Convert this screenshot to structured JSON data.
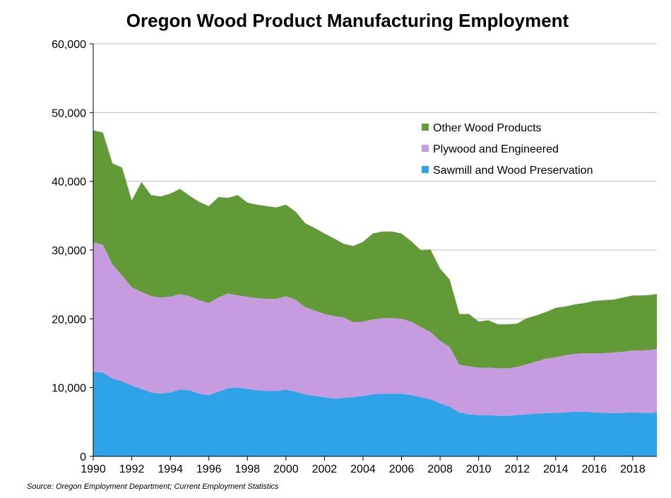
{
  "chart_data": {
    "type": "area",
    "stacked": true,
    "title": "Oregon Wood Product Manufacturing Employment",
    "xlabel": "",
    "ylabel": "",
    "xlim": [
      1990,
      2019.25
    ],
    "ylim": [
      0,
      60000
    ],
    "x_ticks": [
      "1990",
      "1992",
      "1994",
      "1996",
      "1998",
      "2000",
      "2002",
      "2004",
      "2006",
      "2008",
      "2010",
      "2012",
      "2014",
      "2016",
      "2018"
    ],
    "y_ticks": [
      "0",
      "10,000",
      "20,000",
      "30,000",
      "40,000",
      "50,000",
      "60,000"
    ],
    "grid": "horizontal",
    "legend_position": "top-right",
    "x": [
      1990,
      1990.5,
      1991,
      1991.5,
      1992,
      1992.5,
      1993,
      1993.5,
      1994,
      1994.5,
      1995,
      1995.5,
      1996,
      1996.5,
      1997,
      1997.5,
      1998,
      1998.5,
      1999,
      1999.5,
      2000,
      2000.5,
      2001,
      2001.5,
      2002,
      2002.5,
      2003,
      2003.5,
      2004,
      2004.5,
      2005,
      2005.5,
      2006,
      2006.5,
      2007,
      2007.5,
      2008,
      2008.5,
      2009,
      2009.5,
      2010,
      2010.5,
      2011,
      2011.5,
      2012,
      2012.5,
      2013,
      2013.5,
      2014,
      2014.5,
      2015,
      2015.5,
      2016,
      2016.5,
      2017,
      2017.5,
      2018,
      2018.5,
      2019,
      2019.25
    ],
    "series": [
      {
        "name": "Sawmill and Wood Preservation",
        "color": "#2ea3e8",
        "values": [
          12300,
          12200,
          11300,
          10900,
          10300,
          9800,
          9300,
          9100,
          9300,
          9700,
          9600,
          9100,
          8900,
          9400,
          9900,
          10000,
          9800,
          9600,
          9500,
          9500,
          9700,
          9400,
          9000,
          8800,
          8600,
          8400,
          8500,
          8600,
          8800,
          9000,
          9100,
          9100,
          9100,
          8900,
          8600,
          8300,
          7700,
          7200,
          6400,
          6100,
          6000,
          6000,
          5900,
          5900,
          6000,
          6100,
          6200,
          6300,
          6300,
          6400,
          6500,
          6500,
          6400,
          6300,
          6300,
          6300,
          6400,
          6300,
          6300,
          6400
        ]
      },
      {
        "name": "Plywood and Engineered",
        "color": "#c79be0",
        "values": [
          18800,
          18600,
          16600,
          15400,
          14300,
          14100,
          14000,
          14000,
          13900,
          13900,
          13700,
          13600,
          13400,
          13700,
          13800,
          13400,
          13400,
          13400,
          13400,
          13400,
          13600,
          13400,
          12700,
          12400,
          12100,
          12000,
          11700,
          10900,
          10800,
          10900,
          11000,
          11000,
          10900,
          10700,
          10200,
          9800,
          9100,
          8700,
          6900,
          7000,
          6900,
          6900,
          6900,
          6900,
          7000,
          7300,
          7600,
          7900,
          8100,
          8300,
          8400,
          8500,
          8600,
          8700,
          8800,
          8900,
          9000,
          9100,
          9200,
          9200
        ]
      },
      {
        "name": "Other Wood Products",
        "color": "#629a37",
        "values": [
          16300,
          16300,
          14700,
          15700,
          12600,
          16000,
          14700,
          14700,
          15000,
          15300,
          14600,
          14300,
          14100,
          14600,
          13900,
          14600,
          13700,
          13600,
          13500,
          13300,
          13300,
          12800,
          12200,
          12000,
          11700,
          11300,
          10700,
          11100,
          11600,
          12500,
          12600,
          12600,
          12400,
          11700,
          11200,
          12000,
          10500,
          9800,
          7400,
          7600,
          6700,
          6900,
          6400,
          6400,
          6300,
          6700,
          6700,
          6800,
          7200,
          7100,
          7200,
          7300,
          7600,
          7700,
          7700,
          7900,
          8000,
          8000,
          8000,
          8000
        ]
      }
    ],
    "legend_entries": [
      "Other Wood Products",
      "Plywood and Engineered",
      "Sawmill and Wood Preservation"
    ],
    "source": "Source: Oregon Employment Department; Current Employment Statistics"
  }
}
